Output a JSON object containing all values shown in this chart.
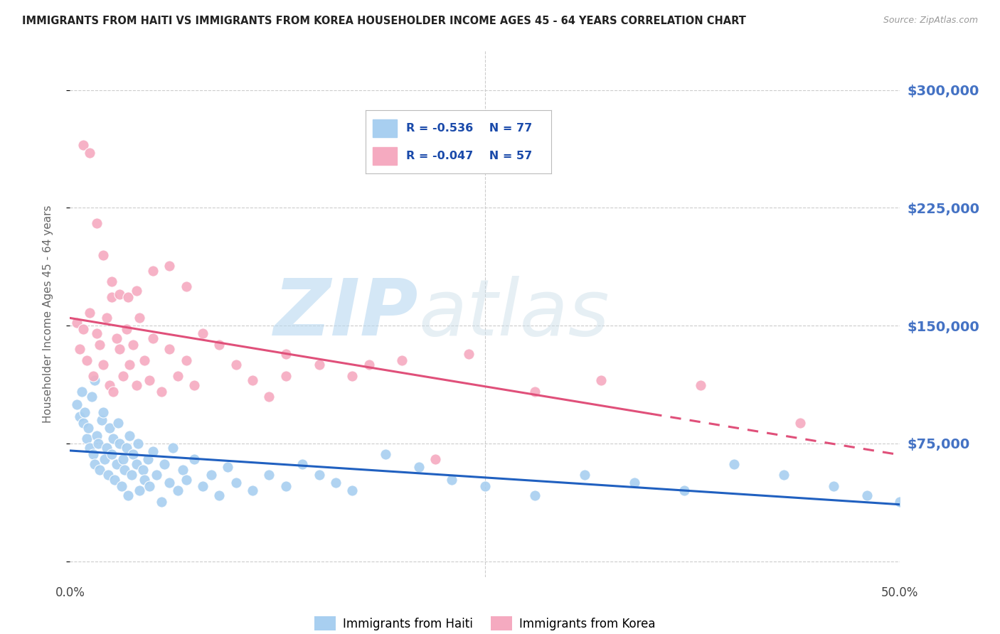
{
  "title": "IMMIGRANTS FROM HAITI VS IMMIGRANTS FROM KOREA HOUSEHOLDER INCOME AGES 45 - 64 YEARS CORRELATION CHART",
  "source": "Source: ZipAtlas.com",
  "ylabel": "Householder Income Ages 45 - 64 years",
  "xlim": [
    0.0,
    0.5
  ],
  "ylim": [
    -10000,
    325000
  ],
  "yticks": [
    0,
    75000,
    150000,
    225000,
    300000
  ],
  "ytick_labels": [
    "",
    "$75,000",
    "$150,000",
    "$225,000",
    "$300,000"
  ],
  "xticks": [
    0.0,
    0.1,
    0.2,
    0.3,
    0.4,
    0.5
  ],
  "xtick_labels": [
    "0.0%",
    "",
    "",
    "",
    "",
    "50.0%"
  ],
  "haiti_color": "#a8cff0",
  "korea_color": "#f5aac0",
  "haiti_R": -0.536,
  "haiti_N": 77,
  "korea_R": -0.047,
  "korea_N": 57,
  "haiti_trend_color": "#2060c0",
  "korea_trend_color": "#e0507a",
  "haiti_label": "Immigrants from Haiti",
  "korea_label": "Immigrants from Korea",
  "watermark_zip": "ZIP",
  "watermark_atlas": "atlas",
  "background_color": "#ffffff",
  "grid_color": "#cccccc",
  "title_color": "#222222",
  "axis_label_color": "#666666",
  "ytick_right_color": "#4472c4",
  "haiti_scatter_x": [
    0.004,
    0.006,
    0.007,
    0.008,
    0.009,
    0.01,
    0.011,
    0.012,
    0.013,
    0.014,
    0.015,
    0.015,
    0.016,
    0.017,
    0.018,
    0.019,
    0.02,
    0.021,
    0.022,
    0.023,
    0.024,
    0.025,
    0.026,
    0.027,
    0.028,
    0.029,
    0.03,
    0.031,
    0.032,
    0.033,
    0.034,
    0.035,
    0.036,
    0.037,
    0.038,
    0.04,
    0.041,
    0.042,
    0.044,
    0.045,
    0.047,
    0.048,
    0.05,
    0.052,
    0.055,
    0.057,
    0.06,
    0.062,
    0.065,
    0.068,
    0.07,
    0.075,
    0.08,
    0.085,
    0.09,
    0.095,
    0.1,
    0.11,
    0.12,
    0.13,
    0.14,
    0.15,
    0.16,
    0.17,
    0.19,
    0.21,
    0.23,
    0.25,
    0.28,
    0.31,
    0.34,
    0.37,
    0.4,
    0.43,
    0.46,
    0.48,
    0.5
  ],
  "haiti_scatter_y": [
    100000,
    92000,
    108000,
    88000,
    95000,
    78000,
    85000,
    72000,
    105000,
    68000,
    115000,
    62000,
    80000,
    75000,
    58000,
    90000,
    95000,
    65000,
    72000,
    55000,
    85000,
    68000,
    78000,
    52000,
    62000,
    88000,
    75000,
    48000,
    65000,
    58000,
    72000,
    42000,
    80000,
    55000,
    68000,
    62000,
    75000,
    45000,
    58000,
    52000,
    65000,
    48000,
    70000,
    55000,
    38000,
    62000,
    50000,
    72000,
    45000,
    58000,
    52000,
    65000,
    48000,
    55000,
    42000,
    60000,
    50000,
    45000,
    55000,
    48000,
    62000,
    55000,
    50000,
    45000,
    68000,
    60000,
    52000,
    48000,
    42000,
    55000,
    50000,
    45000,
    62000,
    55000,
    48000,
    42000,
    38000
  ],
  "korea_scatter_x": [
    0.004,
    0.006,
    0.008,
    0.01,
    0.012,
    0.014,
    0.016,
    0.018,
    0.02,
    0.022,
    0.024,
    0.025,
    0.026,
    0.028,
    0.03,
    0.032,
    0.034,
    0.036,
    0.038,
    0.04,
    0.042,
    0.045,
    0.048,
    0.05,
    0.055,
    0.06,
    0.065,
    0.07,
    0.075,
    0.08,
    0.09,
    0.1,
    0.11,
    0.12,
    0.13,
    0.15,
    0.17,
    0.2,
    0.24,
    0.28,
    0.32,
    0.38,
    0.44,
    0.008,
    0.012,
    0.016,
    0.02,
    0.025,
    0.03,
    0.035,
    0.04,
    0.05,
    0.06,
    0.07,
    0.13,
    0.18,
    0.22
  ],
  "korea_scatter_y": [
    152000,
    135000,
    148000,
    128000,
    158000,
    118000,
    145000,
    138000,
    125000,
    155000,
    112000,
    168000,
    108000,
    142000,
    135000,
    118000,
    148000,
    125000,
    138000,
    112000,
    155000,
    128000,
    115000,
    142000,
    108000,
    135000,
    118000,
    128000,
    112000,
    145000,
    138000,
    125000,
    115000,
    105000,
    132000,
    125000,
    118000,
    128000,
    132000,
    108000,
    115000,
    112000,
    88000,
    265000,
    260000,
    215000,
    195000,
    178000,
    170000,
    168000,
    172000,
    185000,
    188000,
    175000,
    118000,
    125000,
    65000
  ]
}
